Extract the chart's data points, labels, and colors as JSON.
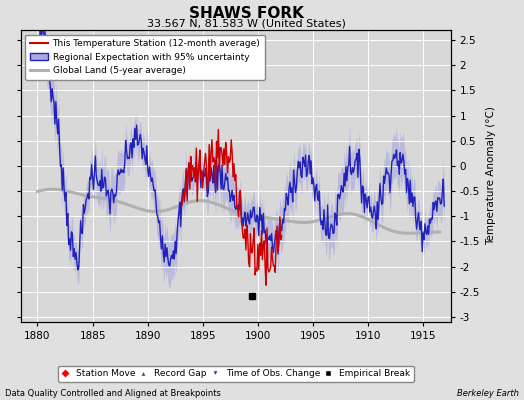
{
  "title": "SHAWS FORK",
  "subtitle": "33.567 N, 81.583 W (United States)",
  "ylabel": "Temperature Anomaly (°C)",
  "xlabel_left": "Data Quality Controlled and Aligned at Breakpoints",
  "xlabel_right": "Berkeley Earth",
  "xlim": [
    1878.5,
    1917.5
  ],
  "ylim": [
    -3.1,
    2.7
  ],
  "yticks": [
    -3,
    -2.5,
    -2,
    -1.5,
    -1,
    -0.5,
    0,
    0.5,
    1,
    1.5,
    2,
    2.5
  ],
  "xticks": [
    1880,
    1885,
    1890,
    1895,
    1900,
    1905,
    1910,
    1915
  ],
  "bg_color": "#e0e0e0",
  "plot_bg_color": "#d8d8d8",
  "grid_color": "#ffffff",
  "regional_color": "#2222bb",
  "regional_fill_color": "#aaaadd",
  "station_color": "#cc0000",
  "global_color": "#b0b0b0",
  "legend_entries": [
    "This Temperature Station (12-month average)",
    "Regional Expectation with 95% uncertainty",
    "Global Land (5-year average)"
  ],
  "empirical_break_x": 1899.5,
  "empirical_break_y": -2.58,
  "marker_legend": [
    "Station Move",
    "Record Gap",
    "Time of Obs. Change",
    "Empirical Break"
  ]
}
